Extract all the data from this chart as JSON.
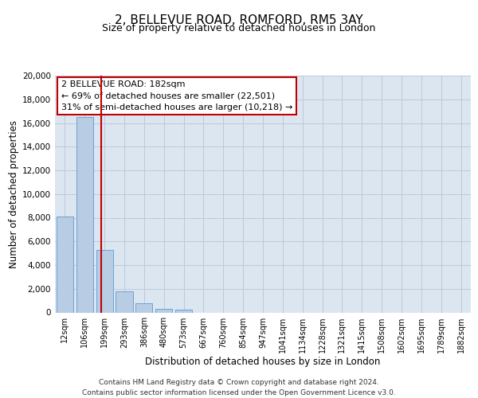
{
  "title": "2, BELLEVUE ROAD, ROMFORD, RM5 3AY",
  "subtitle": "Size of property relative to detached houses in London",
  "xlabel": "Distribution of detached houses by size in London",
  "ylabel": "Number of detached properties",
  "bar_labels": [
    "12sqm",
    "106sqm",
    "199sqm",
    "293sqm",
    "386sqm",
    "480sqm",
    "573sqm",
    "667sqm",
    "760sqm",
    "854sqm",
    "947sqm",
    "1041sqm",
    "1134sqm",
    "1228sqm",
    "1321sqm",
    "1415sqm",
    "1508sqm",
    "1602sqm",
    "1695sqm",
    "1789sqm",
    "1882sqm"
  ],
  "bar_values": [
    8100,
    16500,
    5300,
    1750,
    800,
    300,
    250,
    0,
    0,
    0,
    0,
    0,
    0,
    0,
    0,
    0,
    0,
    0,
    0,
    0,
    0
  ],
  "bar_color": "#b8cce4",
  "bar_edge_color": "#5b9bd5",
  "grid_color": "#c0c8d8",
  "background_color": "#dce6f0",
  "vline_x": 1.82,
  "vline_color": "#c00000",
  "annotation_line1": "2 BELLEVUE ROAD: 182sqm",
  "annotation_line2": "← 69% of detached houses are smaller (22,501)",
  "annotation_line3": "31% of semi-detached houses are larger (10,218) →",
  "footer_text": "Contains HM Land Registry data © Crown copyright and database right 2024.\nContains public sector information licensed under the Open Government Licence v3.0.",
  "ylim": [
    0,
    20000
  ],
  "yticks": [
    0,
    2000,
    4000,
    6000,
    8000,
    10000,
    12000,
    14000,
    16000,
    18000,
    20000
  ],
  "title_fontsize": 11,
  "subtitle_fontsize": 9,
  "axis_label_fontsize": 8.5,
  "tick_fontsize": 7.5,
  "annotation_fontsize": 8,
  "footer_fontsize": 6.5
}
